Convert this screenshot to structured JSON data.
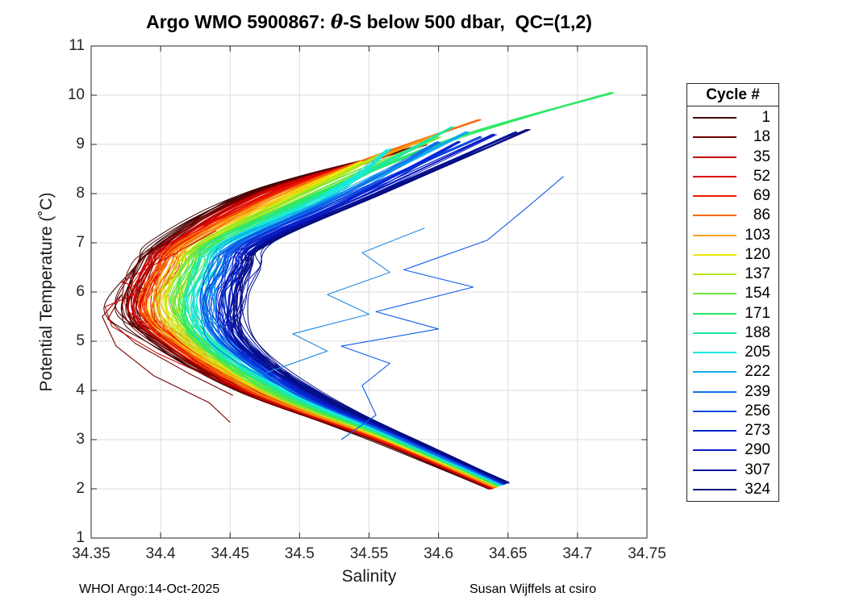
{
  "title": {
    "prefix": "Argo WMO 5900867: ",
    "theta": "θ",
    "suffix": "-S below 500 dbar,  QC=(1,2)"
  },
  "footer": {
    "left": "WHOI Argo:14-Oct-2025",
    "right": "Susan Wijffels at csiro"
  },
  "chart_data": {
    "type": "line",
    "title": "Argo WMO 5900867: θ-S below 500 dbar,  QC=(1,2)",
    "xlabel": "Salinity",
    "ylabel": "Potential Temperature (˚C)",
    "xlim": [
      34.35,
      34.75
    ],
    "ylim": [
      1,
      11
    ],
    "xticks": [
      34.35,
      34.4,
      34.45,
      34.5,
      34.55,
      34.6,
      34.65,
      34.7,
      34.75
    ],
    "xtick_labels": [
      "34.35",
      "34.4",
      "34.45",
      "34.5",
      "34.55",
      "34.6",
      "34.65",
      "34.7",
      "34.75"
    ],
    "yticks": [
      1,
      2,
      3,
      4,
      5,
      6,
      7,
      8,
      9,
      10,
      11
    ],
    "ytick_labels": [
      "1",
      "2",
      "3",
      "4",
      "5",
      "6",
      "7",
      "8",
      "9",
      "10",
      "11"
    ],
    "grid": true,
    "grid_color": "#dcdcdc",
    "axis_color": "#262626",
    "background": "#ffffff",
    "legend": {
      "title": "Cycle #",
      "position": "right-outside"
    },
    "series": [
      {
        "cycle": "1",
        "color": "#400000",
        "points_ST": [
          [
            34.637,
            2.0
          ],
          [
            34.553,
            3.0
          ],
          [
            34.455,
            4.0
          ],
          [
            34.398,
            5.0
          ],
          [
            34.372,
            5.6
          ],
          [
            34.385,
            6.5
          ],
          [
            34.4,
            7.0
          ],
          [
            34.462,
            8.0
          ],
          [
            34.585,
            8.95
          ]
        ]
      },
      {
        "cycle": "18",
        "color": "#6B0000",
        "points_ST": [
          [
            34.638,
            2.01
          ],
          [
            34.555,
            3.0
          ],
          [
            34.458,
            4.0
          ],
          [
            34.401,
            5.0
          ],
          [
            34.377,
            5.61
          ],
          [
            34.389,
            6.5
          ],
          [
            34.404,
            7.0
          ],
          [
            34.467,
            8.0
          ],
          [
            34.59,
            9.0
          ]
        ]
      },
      {
        "cycle": "35",
        "color": "#C40000",
        "points_ST": [
          [
            34.638,
            2.01
          ],
          [
            34.556,
            3.0
          ],
          [
            34.461,
            4.0
          ],
          [
            34.405,
            5.0
          ],
          [
            34.381,
            5.63
          ],
          [
            34.393,
            6.5
          ],
          [
            34.408,
            7.0
          ],
          [
            34.472,
            8.0
          ],
          [
            34.565,
            8.8
          ]
        ]
      },
      {
        "cycle": "52",
        "color": "#DC0600",
        "points_ST": [
          [
            34.639,
            2.02
          ],
          [
            34.558,
            3.0
          ],
          [
            34.464,
            4.0
          ],
          [
            34.408,
            5.0
          ],
          [
            34.386,
            5.64
          ],
          [
            34.398,
            6.5
          ],
          [
            34.412,
            7.0
          ],
          [
            34.477,
            8.0
          ],
          [
            34.55,
            8.7
          ]
        ]
      },
      {
        "cycle": "69",
        "color": "#EE1C00",
        "points_ST": [
          [
            34.64,
            2.03
          ],
          [
            34.559,
            3.0
          ],
          [
            34.467,
            4.0
          ],
          [
            34.412,
            5.0
          ],
          [
            34.39,
            5.65
          ],
          [
            34.402,
            6.5
          ],
          [
            34.416,
            7.0
          ],
          [
            34.483,
            8.0
          ],
          [
            34.56,
            8.75
          ]
        ]
      },
      {
        "cycle": "86",
        "color": "#F8690A",
        "points_ST": [
          [
            34.64,
            2.03
          ],
          [
            34.561,
            3.0
          ],
          [
            34.469,
            4.0
          ],
          [
            34.415,
            5.0
          ],
          [
            34.395,
            5.67
          ],
          [
            34.406,
            6.5
          ],
          [
            34.421,
            7.0
          ],
          [
            34.488,
            8.0
          ],
          [
            34.56,
            8.8
          ],
          [
            34.63,
            9.5
          ]
        ]
      },
      {
        "cycle": "103",
        "color": "#F99E0C",
        "points_ST": [
          [
            34.641,
            2.04
          ],
          [
            34.562,
            3.0
          ],
          [
            34.472,
            4.0
          ],
          [
            34.419,
            5.0
          ],
          [
            34.399,
            5.68
          ],
          [
            34.41,
            6.5
          ],
          [
            34.425,
            7.0
          ],
          [
            34.493,
            8.0
          ],
          [
            34.6,
            9.2
          ]
        ]
      },
      {
        "cycle": "120",
        "color": "#F0E90A",
        "points_ST": [
          [
            34.642,
            2.05
          ],
          [
            34.564,
            3.0
          ],
          [
            34.475,
            4.0
          ],
          [
            34.422,
            5.0
          ],
          [
            34.404,
            5.69
          ],
          [
            34.414,
            6.5
          ],
          [
            34.429,
            7.0
          ],
          [
            34.498,
            8.0
          ],
          [
            34.545,
            8.65
          ]
        ]
      },
      {
        "cycle": "137",
        "color": "#B5E81B",
        "points_ST": [
          [
            34.642,
            2.05
          ],
          [
            34.566,
            3.0
          ],
          [
            34.478,
            4.0
          ],
          [
            34.425,
            5.0
          ],
          [
            34.408,
            5.71
          ],
          [
            34.419,
            6.5
          ],
          [
            34.433,
            7.0
          ],
          [
            34.503,
            8.0
          ],
          [
            34.56,
            8.8
          ]
        ]
      },
      {
        "cycle": "154",
        "color": "#6FE53A",
        "points_ST": [
          [
            34.643,
            2.06
          ],
          [
            34.567,
            3.0
          ],
          [
            34.481,
            4.0
          ],
          [
            34.429,
            5.0
          ],
          [
            34.413,
            5.72
          ],
          [
            34.423,
            6.5
          ],
          [
            34.437,
            7.0
          ],
          [
            34.508,
            8.0
          ],
          [
            34.6,
            9.15
          ]
        ]
      },
      {
        "cycle": "171",
        "color": "#2BE865",
        "points_ST": [
          [
            34.644,
            2.07
          ],
          [
            34.569,
            3.0
          ],
          [
            34.484,
            4.0
          ],
          [
            34.432,
            5.0
          ],
          [
            34.417,
            5.73
          ],
          [
            34.427,
            6.5
          ],
          [
            34.441,
            7.0
          ],
          [
            34.514,
            8.0
          ],
          [
            34.61,
            9.1
          ],
          [
            34.725,
            10.05
          ]
        ]
      },
      {
        "cycle": "188",
        "color": "#1FE9A2",
        "points_ST": [
          [
            34.645,
            2.08
          ],
          [
            34.57,
            3.0
          ],
          [
            34.487,
            4.0
          ],
          [
            34.436,
            5.0
          ],
          [
            34.422,
            5.74
          ],
          [
            34.431,
            6.5
          ],
          [
            34.445,
            7.0
          ],
          [
            34.519,
            8.0
          ],
          [
            34.61,
            9.35
          ]
        ]
      },
      {
        "cycle": "205",
        "color": "#16E9E0",
        "points_ST": [
          [
            34.645,
            2.08
          ],
          [
            34.572,
            3.0
          ],
          [
            34.49,
            4.0
          ],
          [
            34.439,
            5.0
          ],
          [
            34.426,
            5.76
          ],
          [
            34.436,
            6.5
          ],
          [
            34.449,
            7.0
          ],
          [
            34.524,
            8.0
          ],
          [
            34.565,
            8.9
          ]
        ]
      },
      {
        "cycle": "222",
        "color": "#0FABEA",
        "points_ST": [
          [
            34.646,
            2.09
          ],
          [
            34.574,
            3.0
          ],
          [
            34.493,
            4.0
          ],
          [
            34.442,
            5.0
          ],
          [
            34.431,
            5.77
          ],
          [
            34.44,
            6.5
          ],
          [
            34.453,
            7.0
          ],
          [
            34.529,
            8.0
          ],
          [
            34.62,
            9.25
          ]
        ]
      },
      {
        "cycle": "239",
        "color": "#0E72EC",
        "points_ST": [
          [
            34.647,
            2.1
          ],
          [
            34.575,
            3.0
          ],
          [
            34.496,
            4.0
          ],
          [
            34.446,
            5.0
          ],
          [
            34.435,
            5.78
          ],
          [
            34.444,
            6.5
          ],
          [
            34.457,
            7.0
          ],
          [
            34.534,
            8.0
          ],
          [
            34.6,
            9.05
          ]
        ]
      },
      {
        "cycle": "256",
        "color": "#0A46E2",
        "points_ST": [
          [
            34.647,
            2.1
          ],
          [
            34.577,
            3.0
          ],
          [
            34.498,
            4.0
          ],
          [
            34.449,
            5.0
          ],
          [
            34.44,
            5.8
          ],
          [
            34.448,
            6.5
          ],
          [
            34.462,
            7.0
          ],
          [
            34.539,
            8.0
          ],
          [
            34.63,
            9.15
          ]
        ]
      },
      {
        "cycle": "273",
        "color": "#0728D2",
        "points_ST": [
          [
            34.648,
            2.11
          ],
          [
            34.578,
            3.0
          ],
          [
            34.501,
            4.0
          ],
          [
            34.453,
            5.0
          ],
          [
            34.444,
            5.81
          ],
          [
            34.453,
            6.5
          ],
          [
            34.466,
            7.0
          ],
          [
            34.544,
            8.0
          ],
          [
            34.615,
            9.05
          ]
        ]
      },
      {
        "cycle": "290",
        "color": "#0A1CC4",
        "points_ST": [
          [
            34.649,
            2.12
          ],
          [
            34.58,
            3.0
          ],
          [
            34.504,
            4.0
          ],
          [
            34.456,
            5.0
          ],
          [
            34.449,
            5.82
          ],
          [
            34.457,
            6.5
          ],
          [
            34.47,
            7.0
          ],
          [
            34.55,
            8.0
          ],
          [
            34.64,
            9.2
          ]
        ]
      },
      {
        "cycle": "307",
        "color": "#05129E",
        "points_ST": [
          [
            34.649,
            2.12
          ],
          [
            34.581,
            3.0
          ],
          [
            34.507,
            4.0
          ],
          [
            34.459,
            5.0
          ],
          [
            34.453,
            5.84
          ],
          [
            34.461,
            6.5
          ],
          [
            34.474,
            7.0
          ],
          [
            34.555,
            8.0
          ],
          [
            34.655,
            9.25
          ]
        ]
      },
      {
        "cycle": "324",
        "color": "#060D80",
        "points_ST": [
          [
            34.65,
            2.13
          ],
          [
            34.583,
            3.0
          ],
          [
            34.51,
            4.0
          ],
          [
            34.463,
            5.0
          ],
          [
            34.458,
            5.85
          ],
          [
            34.465,
            6.5
          ],
          [
            34.478,
            7.0
          ],
          [
            34.56,
            8.0
          ],
          [
            34.665,
            9.3
          ]
        ]
      }
    ],
    "outliers": [
      {
        "color": "#7A0000",
        "points_ST": [
          [
            34.45,
            3.35
          ],
          [
            34.435,
            3.75
          ],
          [
            34.395,
            4.3
          ],
          [
            34.368,
            4.9
          ],
          [
            34.358,
            5.5
          ],
          [
            34.372,
            5.95
          ],
          [
            34.362,
            5.45
          ],
          [
            34.382,
            4.95
          ],
          [
            34.42,
            4.35
          ],
          [
            34.452,
            3.9
          ]
        ]
      },
      {
        "color": "#C40000",
        "points_ST": [
          [
            34.5,
            3.55
          ],
          [
            34.445,
            4.15
          ],
          [
            34.398,
            4.75
          ],
          [
            34.365,
            5.3
          ],
          [
            34.36,
            5.7
          ],
          [
            34.39,
            6.05
          ],
          [
            34.372,
            6.2
          ],
          [
            34.405,
            6.7
          ],
          [
            34.44,
            7.25
          ]
        ]
      },
      {
        "color": "#0E5AEC",
        "points_ST": [
          [
            34.53,
            3.0
          ],
          [
            34.555,
            3.5
          ],
          [
            34.545,
            4.1
          ],
          [
            34.565,
            4.55
          ],
          [
            34.53,
            4.9
          ],
          [
            34.6,
            5.25
          ],
          [
            34.555,
            5.6
          ],
          [
            34.625,
            6.1
          ],
          [
            34.575,
            6.45
          ],
          [
            34.635,
            7.05
          ],
          [
            34.665,
            7.75
          ],
          [
            34.69,
            8.35
          ]
        ]
      },
      {
        "color": "#1E8BE8",
        "points_ST": [
          [
            34.475,
            4.35
          ],
          [
            34.52,
            4.8
          ],
          [
            34.495,
            5.15
          ],
          [
            34.55,
            5.55
          ],
          [
            34.52,
            5.95
          ],
          [
            34.565,
            6.4
          ],
          [
            34.545,
            6.8
          ],
          [
            34.59,
            7.3
          ]
        ]
      }
    ]
  }
}
